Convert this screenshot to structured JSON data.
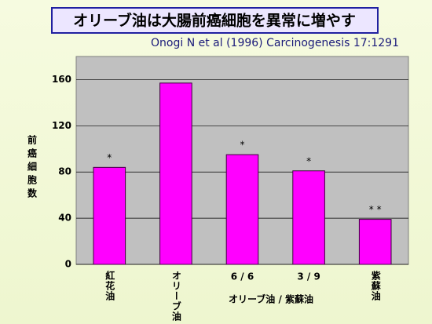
{
  "chart_data": {
    "type": "bar",
    "title": "オリーブ油は大腸前癌細胞を異常に増やす",
    "subtitle": "Onogi N et al (1996) Carcinogenesis 17:1291",
    "y_label": "前癌細胞数",
    "x_label": "オリーブ油 / 紫蘇油",
    "categories": [
      "紅花油",
      "オリーブ油",
      "6 / 6",
      "3 / 9",
      "紫蘇油"
    ],
    "values": [
      84,
      157,
      95,
      81,
      39
    ],
    "color": "#ff00ff",
    "annotations": [
      {
        "category": "紅花油",
        "text": "*"
      },
      {
        "category": "6 / 6",
        "text": "*"
      },
      {
        "category": "3 / 9",
        "text": "*"
      },
      {
        "category": "紫蘇油",
        "text": "* *"
      }
    ],
    "ylim": [
      0,
      180
    ],
    "yticks": [
      0,
      40,
      80,
      120,
      160
    ],
    "grid": true
  }
}
